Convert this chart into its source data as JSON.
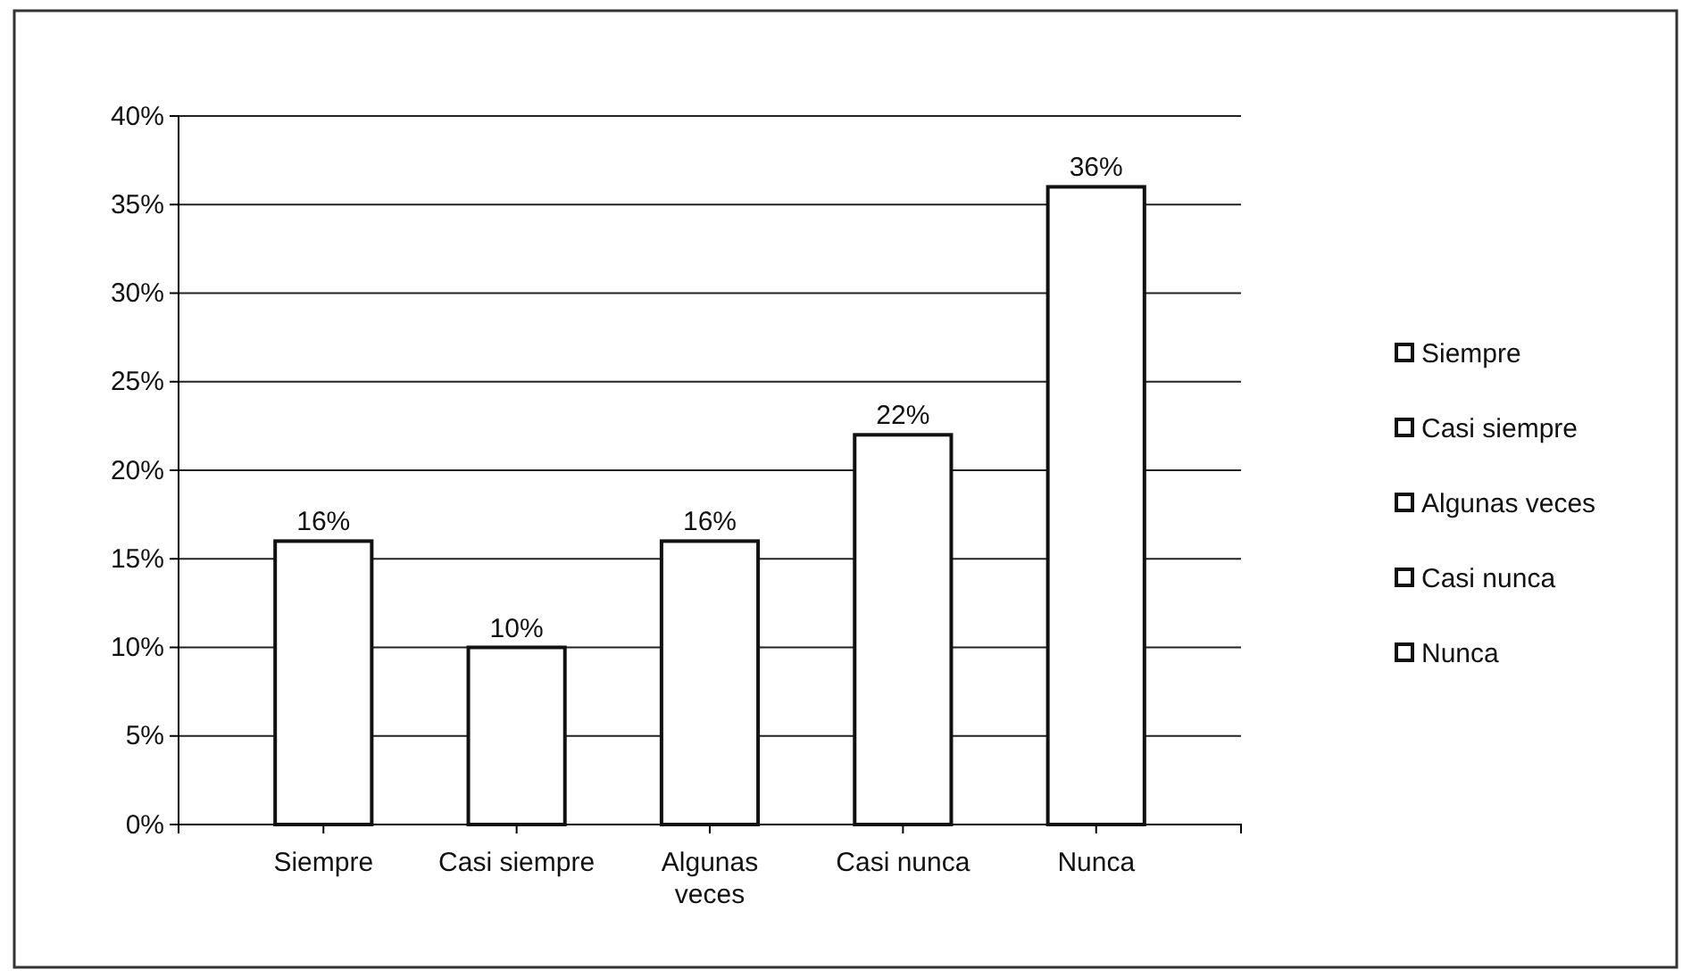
{
  "chart_data": {
    "type": "bar",
    "categories": [
      "Siempre",
      "Casi siempre",
      "Algunas veces",
      "Casi nunca",
      "Nunca"
    ],
    "values": [
      16,
      10,
      16,
      22,
      36
    ],
    "value_labels": [
      "16%",
      "10%",
      "16%",
      "22%",
      "36%"
    ],
    "colors": [
      "#ffffff",
      "#ffffff",
      "#ffffff",
      "#ffffff",
      "#ffffff"
    ],
    "ylim": [
      0,
      40
    ],
    "yticks": [
      {
        "value": 0,
        "label": "0%"
      },
      {
        "value": 5,
        "label": "5%"
      },
      {
        "value": 10,
        "label": "10%"
      },
      {
        "value": 15,
        "label": "15%"
      },
      {
        "value": 20,
        "label": "20%"
      },
      {
        "value": 25,
        "label": "25%"
      },
      {
        "value": 30,
        "label": "30%"
      },
      {
        "value": 35,
        "label": "35%"
      },
      {
        "value": 40,
        "label": "40%"
      }
    ],
    "grid": "y"
  }
}
